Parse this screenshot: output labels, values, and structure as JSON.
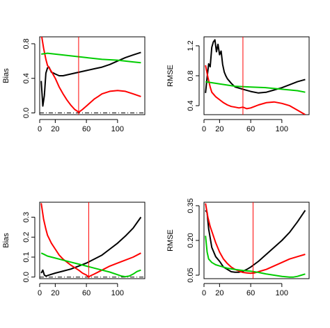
{
  "chart_data": [
    {
      "type": "line",
      "ylabel": "Bias",
      "xlim": [
        0,
        135
      ],
      "ylim": [
        -0.02,
        0.88
      ],
      "xticks": [
        0,
        20,
        60,
        100
      ],
      "yticks": [
        0.0,
        0.4,
        0.8
      ],
      "ytick_labels": [
        "0.0",
        "0.4",
        "0.8"
      ],
      "vline": 50,
      "hline": 0,
      "series": [
        {
          "color": "#000000",
          "x": [
            2,
            4,
            6,
            8,
            10,
            12,
            15,
            18,
            20,
            25,
            30,
            40,
            50,
            60,
            70,
            80,
            90,
            100,
            110,
            120,
            130
          ],
          "y": [
            0.37,
            0.08,
            0.2,
            0.46,
            0.52,
            0.53,
            0.47,
            0.46,
            0.45,
            0.43,
            0.43,
            0.45,
            0.47,
            0.49,
            0.51,
            0.53,
            0.56,
            0.6,
            0.64,
            0.67,
            0.7
          ]
        },
        {
          "color": "#ff0000",
          "x": [
            2,
            5,
            8,
            10,
            15,
            20,
            25,
            30,
            35,
            40,
            45,
            50,
            52,
            55,
            60,
            65,
            70,
            75,
            80,
            90,
            100,
            110,
            120,
            130
          ],
          "y": [
            0.92,
            0.75,
            0.62,
            0.55,
            0.48,
            0.4,
            0.3,
            0.22,
            0.15,
            0.09,
            0.04,
            0.01,
            0.02,
            0.04,
            0.08,
            0.12,
            0.16,
            0.19,
            0.22,
            0.25,
            0.26,
            0.25,
            0.22,
            0.19
          ]
        },
        {
          "color": "#00cc00",
          "x": [
            2,
            10,
            20,
            40,
            60,
            80,
            100,
            120,
            130
          ],
          "y": [
            0.68,
            0.69,
            0.68,
            0.66,
            0.64,
            0.62,
            0.61,
            0.59,
            0.58
          ]
        }
      ]
    },
    {
      "type": "line",
      "ylabel": "RMSE",
      "xlim": [
        0,
        135
      ],
      "ylim": [
        0.28,
        1.32
      ],
      "xticks": [
        0,
        20,
        60,
        100
      ],
      "yticks": [
        0.4,
        0.8,
        1.2
      ],
      "ytick_labels": [
        "0.4",
        "0.8",
        "1.2"
      ],
      "vline": 50,
      "series": [
        {
          "color": "#000000",
          "x": [
            2,
            4,
            6,
            8,
            10,
            12,
            14,
            16,
            18,
            20,
            22,
            24,
            26,
            28,
            30,
            35,
            40,
            50,
            60,
            70,
            80,
            90,
            100,
            110,
            120,
            130
          ],
          "y": [
            0.57,
            0.78,
            0.96,
            0.92,
            1.18,
            1.25,
            1.28,
            1.12,
            1.22,
            1.08,
            1.13,
            0.95,
            0.85,
            0.8,
            0.76,
            0.7,
            0.65,
            0.62,
            0.59,
            0.57,
            0.58,
            0.61,
            0.64,
            0.68,
            0.72,
            0.75
          ]
        },
        {
          "color": "#ff0000",
          "x": [
            2,
            5,
            8,
            10,
            15,
            20,
            25,
            30,
            35,
            40,
            45,
            50,
            55,
            60,
            65,
            70,
            80,
            90,
            100,
            110,
            120,
            130
          ],
          "y": [
            0.94,
            0.78,
            0.65,
            0.58,
            0.52,
            0.48,
            0.44,
            0.41,
            0.39,
            0.38,
            0.37,
            0.38,
            0.36,
            0.37,
            0.39,
            0.41,
            0.44,
            0.45,
            0.43,
            0.4,
            0.34,
            0.28
          ]
        },
        {
          "color": "#00cc00",
          "x": [
            2,
            20,
            40,
            60,
            80,
            100,
            120,
            130
          ],
          "y": [
            0.72,
            0.69,
            0.66,
            0.65,
            0.64,
            0.62,
            0.6,
            0.58
          ]
        }
      ]
    },
    {
      "type": "line",
      "ylabel": "Bias",
      "xlim": [
        0,
        135
      ],
      "ylim": [
        -0.008,
        0.375
      ],
      "xticks": [
        0,
        20,
        60,
        100
      ],
      "yticks": [
        0.0,
        0.1,
        0.2,
        0.3
      ],
      "ytick_labels": [
        "0.0",
        "0.1",
        "0.2",
        "0.3"
      ],
      "vline": 63,
      "hline": 0,
      "series": [
        {
          "color": "#000000",
          "x": [
            2,
            4,
            6,
            8,
            12,
            20,
            30,
            40,
            50,
            60,
            70,
            80,
            90,
            100,
            110,
            120,
            130
          ],
          "y": [
            0.02,
            0.035,
            0.01,
            0.005,
            0.01,
            0.02,
            0.03,
            0.04,
            0.055,
            0.07,
            0.09,
            0.11,
            0.14,
            0.17,
            0.205,
            0.245,
            0.3
          ]
        },
        {
          "color": "#ff0000",
          "x": [
            2,
            5,
            8,
            10,
            15,
            20,
            25,
            30,
            40,
            50,
            55,
            60,
            63,
            65,
            70,
            80,
            90,
            100,
            110,
            120,
            130
          ],
          "y": [
            0.37,
            0.29,
            0.24,
            0.21,
            0.17,
            0.14,
            0.11,
            0.09,
            0.06,
            0.035,
            0.02,
            0.01,
            0.0,
            0.006,
            0.015,
            0.035,
            0.055,
            0.07,
            0.085,
            0.1,
            0.12
          ]
        },
        {
          "color": "#00cc00",
          "x": [
            2,
            5,
            10,
            20,
            30,
            40,
            50,
            60,
            70,
            80,
            90,
            100,
            105,
            110,
            115,
            120,
            125,
            130
          ],
          "y": [
            0.12,
            0.115,
            0.105,
            0.095,
            0.085,
            0.075,
            0.065,
            0.055,
            0.045,
            0.035,
            0.025,
            0.012,
            0.005,
            0.002,
            0.005,
            0.015,
            0.028,
            0.035
          ]
        }
      ]
    },
    {
      "type": "line",
      "ylabel": "RMSE",
      "xlim": [
        0,
        135
      ],
      "ylim": [
        0.035,
        0.365
      ],
      "xticks": [
        0,
        20,
        60,
        100
      ],
      "yticks": [
        0.05,
        0.2,
        0.35
      ],
      "ytick_labels": [
        "0.05",
        "0.20",
        "0.35"
      ],
      "vline": 63,
      "series": [
        {
          "color": "#000000",
          "x": [
            2,
            4,
            6,
            10,
            15,
            20,
            25,
            30,
            35,
            40,
            45,
            50,
            55,
            60,
            70,
            80,
            90,
            100,
            110,
            120,
            130
          ],
          "y": [
            0.33,
            0.32,
            0.25,
            0.17,
            0.13,
            0.11,
            0.085,
            0.075,
            0.065,
            0.063,
            0.063,
            0.067,
            0.075,
            0.085,
            0.11,
            0.14,
            0.17,
            0.2,
            0.235,
            0.28,
            0.33
          ]
        },
        {
          "color": "#ff0000",
          "x": [
            2,
            5,
            8,
            10,
            15,
            20,
            25,
            30,
            35,
            40,
            45,
            50,
            55,
            60,
            65,
            70,
            80,
            90,
            100,
            110,
            120,
            130
          ],
          "y": [
            0.36,
            0.3,
            0.26,
            0.24,
            0.19,
            0.15,
            0.12,
            0.1,
            0.085,
            0.075,
            0.068,
            0.062,
            0.06,
            0.058,
            0.06,
            0.065,
            0.075,
            0.09,
            0.105,
            0.12,
            0.13,
            0.14
          ]
        },
        {
          "color": "#00cc00",
          "x": [
            2,
            4,
            6,
            10,
            15,
            20,
            25,
            30,
            40,
            50,
            60,
            70,
            80,
            90,
            100,
            110,
            115,
            120,
            125,
            130
          ],
          "y": [
            0.22,
            0.15,
            0.12,
            0.105,
            0.095,
            0.09,
            0.085,
            0.08,
            0.075,
            0.07,
            0.067,
            0.062,
            0.055,
            0.05,
            0.045,
            0.042,
            0.042,
            0.045,
            0.05,
            0.055
          ]
        }
      ]
    }
  ],
  "vline_color": "#ff0000",
  "hline_style": "dash-dot"
}
